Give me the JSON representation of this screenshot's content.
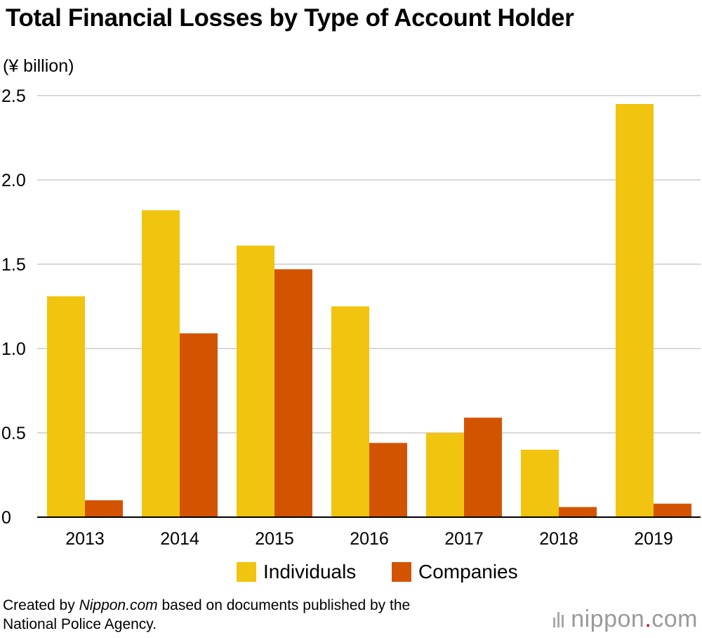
{
  "title": "Total Financial Losses by Type of Account Holder",
  "unit_label": "(¥ billion)",
  "footer": {
    "prefix": "Created by ",
    "source_name": "Nippon.com",
    "suffix_line1": " based on documents published by the",
    "line2": "National Police Agency."
  },
  "brand": {
    "name": "nippon",
    "dot": ".",
    "tld": "com"
  },
  "colors": {
    "individuals": "#F1C40F",
    "companies": "#D35400",
    "grid": "#cccccc",
    "axis": "#000000"
  },
  "chart_data": {
    "type": "bar",
    "categories": [
      "2013",
      "2014",
      "2015",
      "2016",
      "2017",
      "2018",
      "2019"
    ],
    "series": [
      {
        "name": "Individuals",
        "values": [
          1.31,
          1.82,
          1.61,
          1.25,
          0.5,
          0.4,
          2.45
        ]
      },
      {
        "name": "Companies",
        "values": [
          0.1,
          1.09,
          1.47,
          0.44,
          0.59,
          0.06,
          0.08
        ]
      }
    ],
    "yticks": [
      "0",
      "0.5",
      "1.0",
      "1.5",
      "2.0",
      "2.5"
    ],
    "ylim": [
      0,
      2.5
    ],
    "grid": true,
    "legend": "bottom"
  }
}
